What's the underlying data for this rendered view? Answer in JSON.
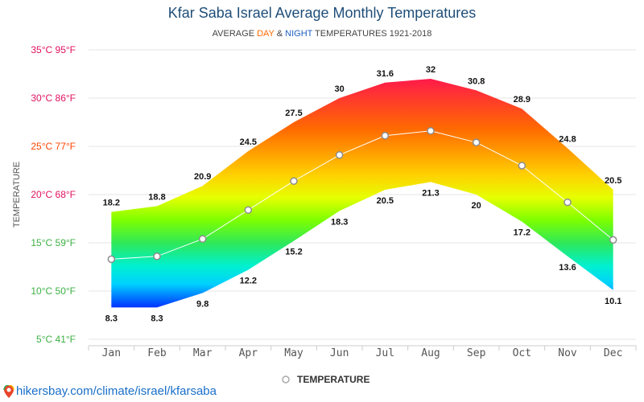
{
  "header": {
    "title": "Kfar Saba Israel Average Monthly Temperatures",
    "subtitle_prefix": "AVERAGE ",
    "subtitle_day": "DAY",
    "subtitle_amp": " & ",
    "subtitle_night": "NIGHT",
    "subtitle_suffix": " TEMPERATURES 1921-2018"
  },
  "footer": {
    "link_text": "hikersbay.com/climate/israel/kfarsaba"
  },
  "chart_data": {
    "type": "area",
    "title": "Kfar Saba Israel Average Monthly Temperatures",
    "subtitle": "AVERAGE DAY & NIGHT TEMPERATURES 1921-2018",
    "ylabel": "TEMPERATURE",
    "xlabel": "",
    "categories": [
      "Jan",
      "Feb",
      "Mar",
      "Apr",
      "May",
      "Jun",
      "Jul",
      "Aug",
      "Sep",
      "Oct",
      "Nov",
      "Dec"
    ],
    "ylim": [
      5,
      35
    ],
    "yticks": [
      {
        "value": 35,
        "label": "35°C 95°F",
        "color": "#e0115f"
      },
      {
        "value": 30,
        "label": "30°C 86°F",
        "color": "#e0115f"
      },
      {
        "value": 25,
        "label": "25°C 77°F",
        "color": "#ff4500"
      },
      {
        "value": 20,
        "label": "20°C 68°F",
        "color": "#e0115f"
      },
      {
        "value": 15,
        "label": "15°C 59°F",
        "color": "#3cb043"
      },
      {
        "value": 10,
        "label": "10°C 50°F",
        "color": "#3cb043"
      },
      {
        "value": 5,
        "label": "5°C 41°F",
        "color": "#3cb043"
      }
    ],
    "grid": true,
    "legend": {
      "position": "bottom-center",
      "label": "TEMPERATURE"
    },
    "series": [
      {
        "name": "Day",
        "values": [
          18.2,
          18.8,
          20.9,
          24.5,
          27.5,
          30,
          31.6,
          32,
          30.8,
          28.9,
          24.8,
          20.5
        ]
      },
      {
        "name": "Night",
        "values": [
          8.3,
          8.3,
          9.8,
          12.2,
          15.2,
          18.3,
          20.5,
          21.3,
          20,
          17.2,
          13.6,
          10.1
        ]
      },
      {
        "name": "TEMPERATURE",
        "values": [
          13.3,
          13.6,
          15.4,
          18.4,
          21.4,
          24.1,
          26.1,
          26.6,
          25.4,
          23.0,
          19.2,
          15.3
        ]
      }
    ],
    "colors": {
      "line": "#ffffff",
      "marker_stroke": "#8c8c8c",
      "axis_text": "#555555",
      "grid": "#e6e6e6",
      "label": "#111111"
    }
  }
}
